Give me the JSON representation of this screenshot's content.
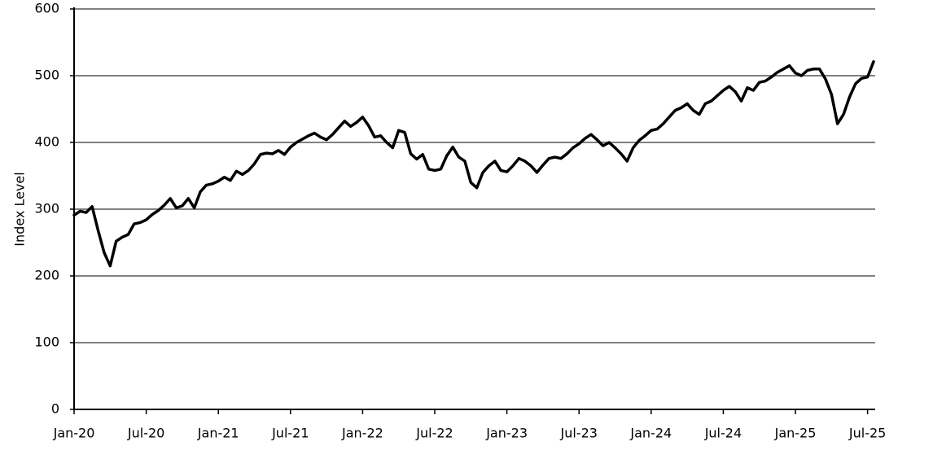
{
  "chart_data": {
    "type": "line",
    "y_label": "Index Level",
    "categories": [
      "Jan-20",
      null,
      null,
      null,
      null,
      null,
      null,
      null,
      null,
      null,
      null,
      null,
      "Jul-20",
      null,
      null,
      null,
      null,
      null,
      null,
      null,
      null,
      null,
      null,
      null,
      "Jan-21",
      null,
      null,
      null,
      null,
      null,
      null,
      null,
      null,
      null,
      null,
      null,
      "Jul-21",
      null,
      null,
      null,
      null,
      null,
      null,
      null,
      null,
      null,
      null,
      null,
      "Jan-22",
      null,
      null,
      null,
      null,
      null,
      null,
      null,
      null,
      null,
      null,
      null,
      "Jul-22",
      null,
      null,
      null,
      null,
      null,
      null,
      null,
      null,
      null,
      null,
      null,
      "Jan-23",
      null,
      null,
      null,
      null,
      null,
      null,
      null,
      null,
      null,
      null,
      null,
      "Jul-23",
      null,
      null,
      null,
      null,
      null,
      null,
      null,
      null,
      null,
      null,
      null,
      "Jan-24",
      null,
      null,
      null,
      null,
      null,
      null,
      null,
      null,
      null,
      null,
      null,
      "Jul-24",
      null,
      null,
      null,
      null,
      null,
      null,
      null,
      null,
      null,
      null,
      null,
      "Jan-25",
      null,
      null,
      null,
      null,
      null,
      null,
      null,
      null,
      null,
      null,
      null,
      "Jul-25",
      null
    ],
    "values": [
      291,
      297,
      295,
      304,
      268,
      235,
      215,
      252,
      258,
      262,
      278,
      280,
      284,
      292,
      298,
      306,
      316,
      302,
      305,
      316,
      302,
      326,
      336,
      338,
      342,
      348,
      343,
      357,
      352,
      358,
      368,
      382,
      384,
      383,
      388,
      382,
      393,
      400,
      405,
      410,
      414,
      408,
      404,
      412,
      422,
      432,
      424,
      430,
      438,
      425,
      408,
      410,
      400,
      392,
      418,
      415,
      383,
      375,
      382,
      360,
      358,
      360,
      380,
      393,
      378,
      372,
      340,
      332,
      355,
      365,
      372,
      358,
      356,
      365,
      376,
      372,
      365,
      355,
      366,
      376,
      378,
      376,
      383,
      392,
      398,
      406,
      412,
      404,
      395,
      400,
      392,
      383,
      372,
      392,
      403,
      410,
      418,
      420,
      428,
      438,
      448,
      452,
      458,
      448,
      442,
      458,
      462,
      470,
      478,
      484,
      476,
      462,
      482,
      478,
      490,
      492,
      498,
      505,
      510,
      515,
      504,
      500,
      508,
      510,
      510,
      495,
      472,
      428,
      442,
      468,
      488,
      496,
      498,
      521
    ],
    "color": "#000000",
    "ylim": [
      0,
      600
    ],
    "yticks": [
      0,
      100,
      200,
      300,
      400,
      500,
      600
    ],
    "grid": true
  }
}
